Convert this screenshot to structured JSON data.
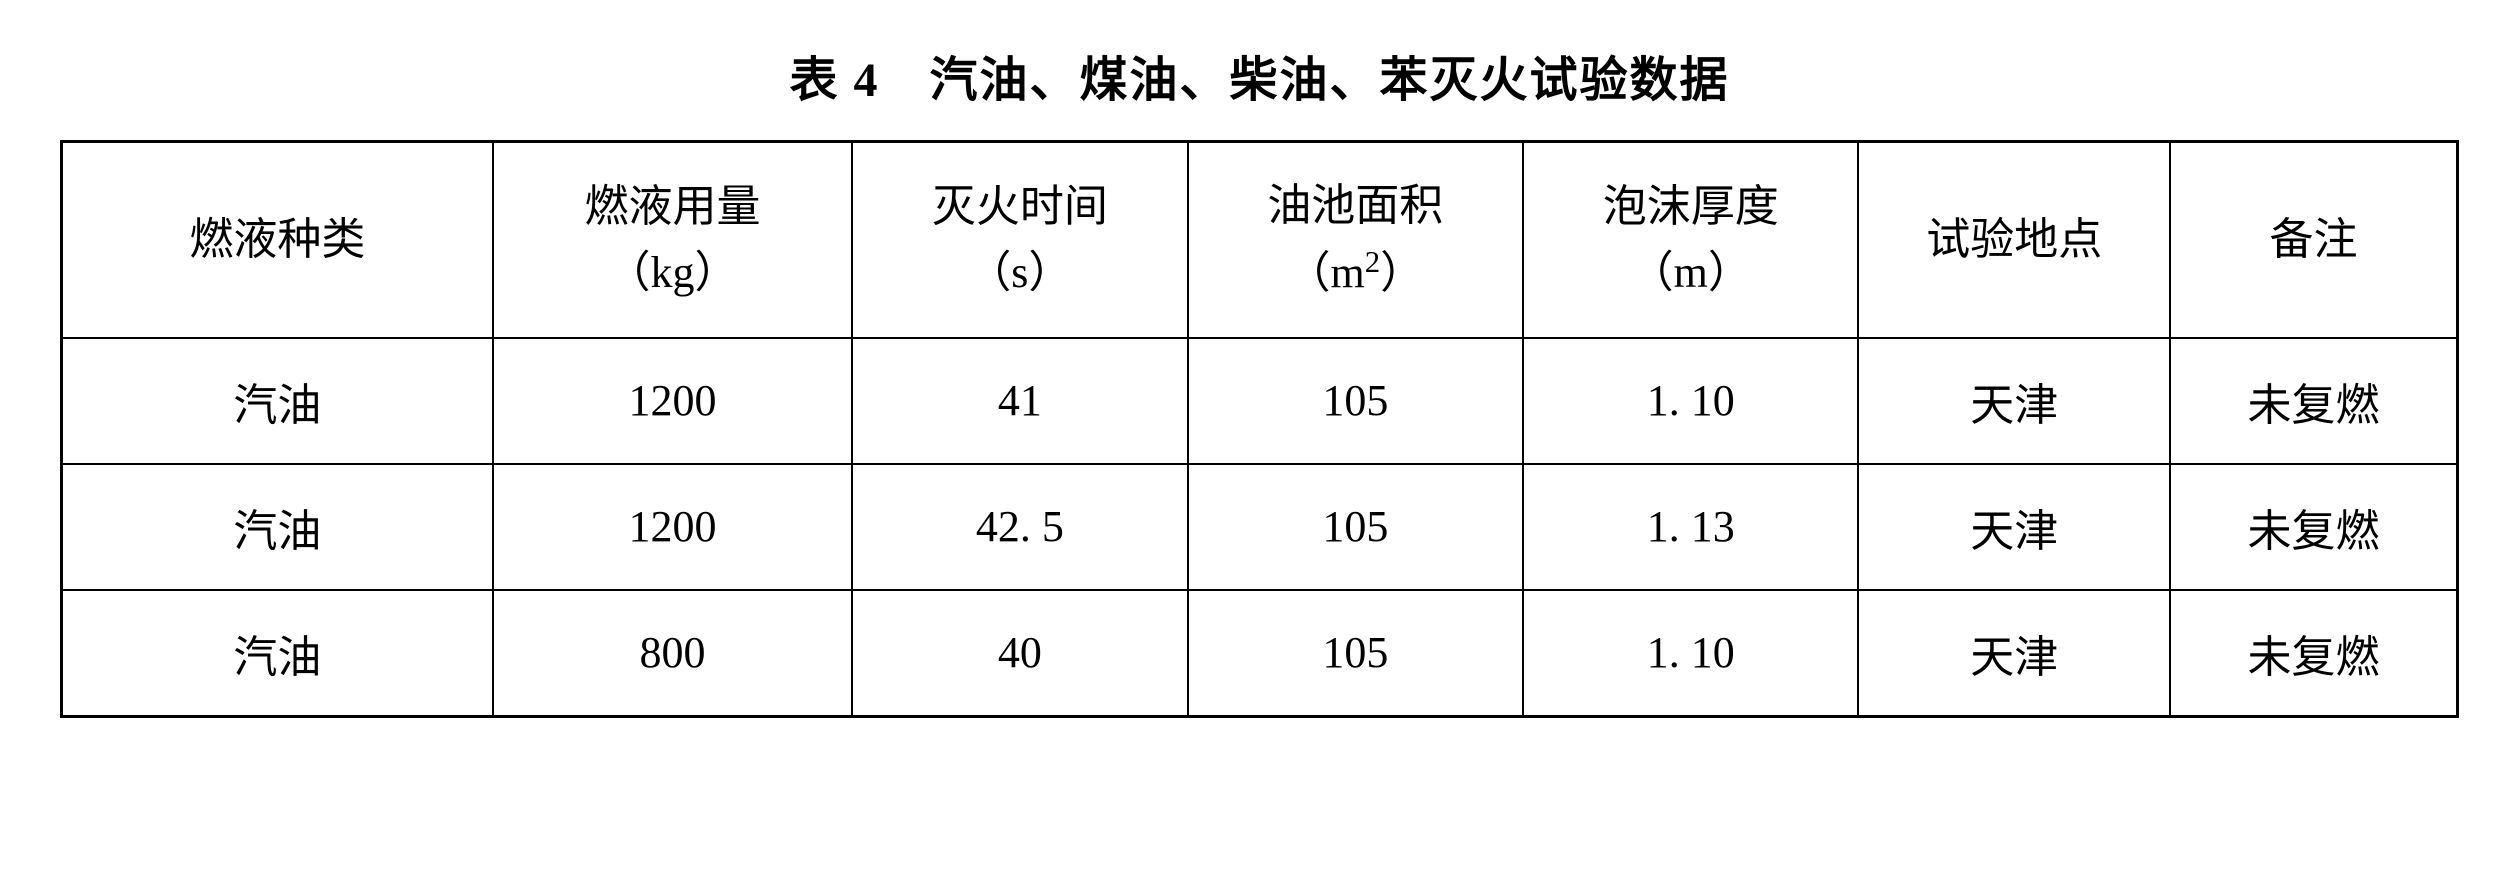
{
  "table": {
    "title": "表 4　汽油、煤油、柴油、苯灭火试验数据",
    "columns": {
      "type": {
        "line1": "燃液种类"
      },
      "amount": {
        "line1": "燃液用量",
        "line2": "（kg）"
      },
      "time": {
        "line1": "灭火时间",
        "line2": "（s）"
      },
      "area": {
        "line1": "油池面积",
        "line2_prefix": "（m",
        "line2_sup": "2",
        "line2_suffix": "）"
      },
      "thickness": {
        "line1": "泡沫厚度",
        "line2": "（m）"
      },
      "location": {
        "line1": "试验地点"
      },
      "remark": {
        "line1": "备注"
      }
    },
    "rows": [
      {
        "type": "汽油",
        "amount": "1200",
        "time": "41",
        "area": "105",
        "thickness": "1. 10",
        "location": "天津",
        "remark": "未复燃"
      },
      {
        "type": "汽油",
        "amount": "1200",
        "time": "42. 5",
        "area": "105",
        "thickness": "1. 13",
        "location": "天津",
        "remark": "未复燃"
      },
      {
        "type": "汽油",
        "amount": "800",
        "time": "40",
        "area": "105",
        "thickness": "1. 10",
        "location": "天津",
        "remark": "未复燃"
      }
    ],
    "styling": {
      "border_color": "#000000",
      "background_color": "#ffffff",
      "text_color": "#000000",
      "title_fontsize": 48,
      "cell_fontsize": 44,
      "outer_border_width": 3,
      "inner_border_width": 2,
      "font_family": "SimSun"
    }
  }
}
